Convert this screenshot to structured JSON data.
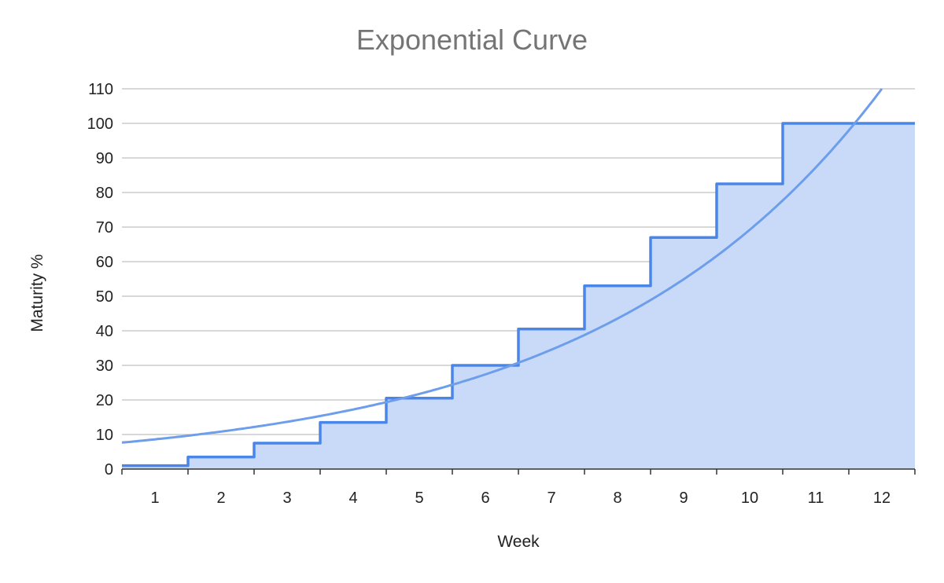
{
  "chart_data": {
    "type": "area",
    "title": "Exponential Curve",
    "xlabel": "Week",
    "ylabel": "Maturity %",
    "categories": [
      "1",
      "2",
      "3",
      "4",
      "5",
      "6",
      "7",
      "8",
      "9",
      "10",
      "11",
      "12"
    ],
    "series": [
      {
        "style": "stepped-area",
        "values": [
          1,
          3.5,
          7.5,
          13.5,
          20.5,
          30,
          40.5,
          53,
          67,
          82.5,
          100,
          100
        ]
      },
      {
        "style": "exponential-trendline",
        "values": [
          8.6,
          10.4,
          12.6,
          15.2,
          18.6,
          23.7,
          30.2,
          40,
          51.5,
          66.3,
          85.5,
          110
        ]
      }
    ],
    "ylim": [
      0,
      110
    ],
    "yticks": [
      0,
      10,
      20,
      30,
      40,
      50,
      60,
      70,
      80,
      90,
      100,
      110
    ],
    "grid": true,
    "legend": "none",
    "colors": {
      "line": "#4a86e8",
      "fill": "#c9daf8",
      "trend": "#6d9eeb",
      "grid": "#cccccc"
    }
  }
}
